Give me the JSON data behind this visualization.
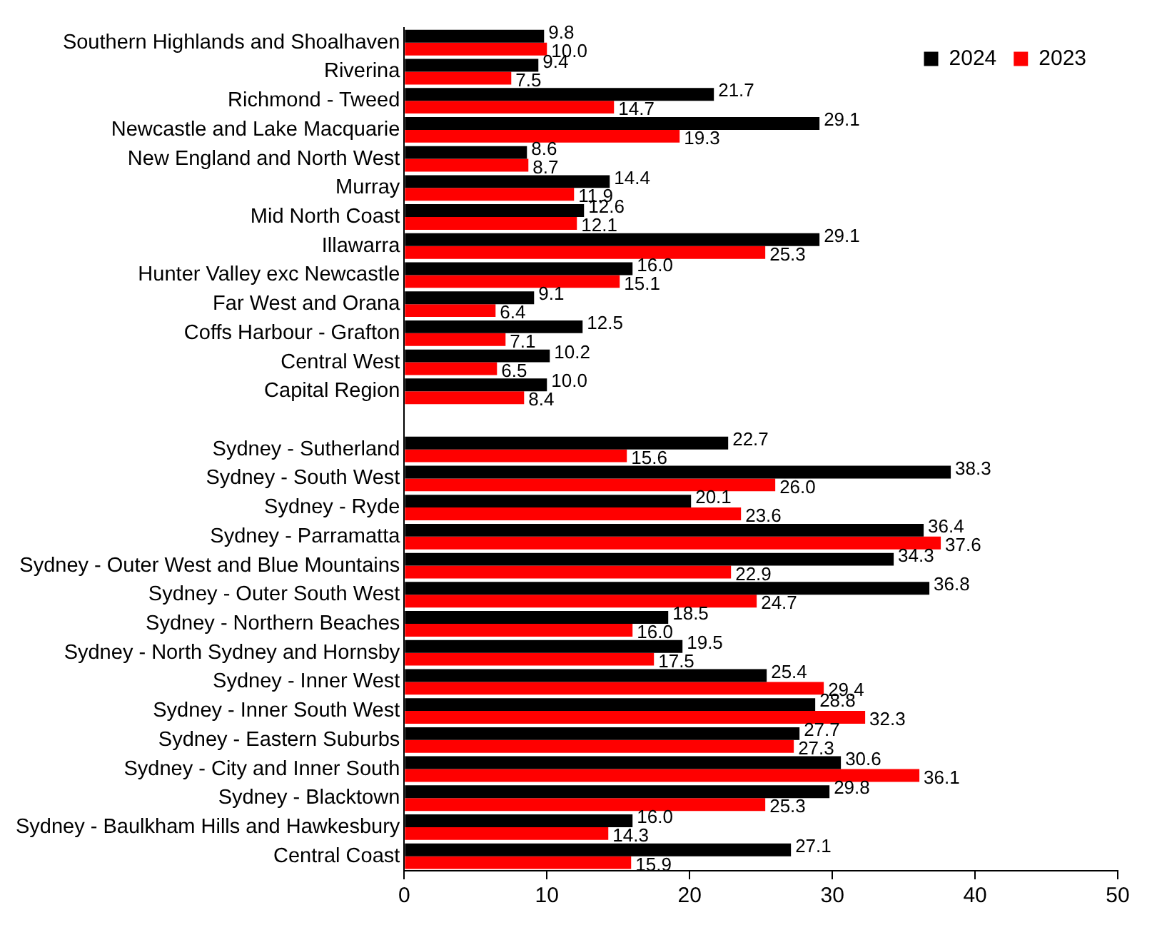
{
  "chart_data": {
    "type": "bar",
    "orientation": "horizontal",
    "legend": "top right",
    "grid": false,
    "categories": [
      "Southern Highlands and Shoalhaven",
      "Riverina",
      "Richmond - Tweed",
      "Newcastle and Lake Macquarie",
      "New England and North West",
      "Murray",
      "Mid North Coast",
      "Illawarra",
      "Hunter Valley exc Newcastle",
      "Far West and Orana",
      "Coffs Harbour - Grafton",
      "Central West",
      "Capital Region",
      null,
      "Sydney - Sutherland",
      "Sydney - South West",
      "Sydney - Ryde",
      "Sydney - Parramatta",
      "Sydney - Outer West and Blue Mountains",
      "Sydney - Outer South West",
      "Sydney - Northern Beaches",
      "Sydney - North Sydney and Hornsby",
      "Sydney - Inner West",
      "Sydney - Inner South West",
      "Sydney - Eastern Suburbs",
      "Sydney - City and Inner South",
      "Sydney - Blacktown",
      "Sydney - Baulkham Hills and Hawkesbury",
      "Central Coast"
    ],
    "series": [
      {
        "name": "2024",
        "color": "#000000",
        "values": [
          9.8,
          9.4,
          21.7,
          29.1,
          8.6,
          14.4,
          12.6,
          29.1,
          16.0,
          9.1,
          12.5,
          10.2,
          10.0,
          null,
          22.7,
          38.3,
          20.1,
          36.4,
          34.3,
          36.8,
          18.5,
          19.5,
          25.4,
          28.8,
          27.7,
          30.6,
          29.8,
          16.0,
          27.1
        ],
        "value_labels": [
          "9.8",
          "9.4",
          "21.7",
          "29.1",
          "8.6",
          "14.4",
          "12.6",
          "29.1",
          "16.0",
          "9.1",
          "12.5",
          "10.2",
          "10.0",
          null,
          "22.7",
          "38.3",
          "20.1",
          "36.4",
          "34.3",
          "36.8",
          "18.5",
          "19.5",
          "25.4",
          "28.8",
          "27.7",
          "30.6",
          "29.8",
          "16.0",
          "27.1"
        ]
      },
      {
        "name": "2023",
        "color": "#ff0000",
        "values": [
          10.0,
          7.5,
          14.7,
          19.3,
          8.7,
          11.9,
          12.1,
          25.3,
          15.1,
          6.4,
          7.1,
          6.5,
          8.4,
          null,
          15.6,
          26.0,
          23.6,
          37.6,
          22.9,
          24.7,
          16.0,
          17.5,
          29.4,
          32.3,
          27.3,
          36.1,
          25.3,
          14.3,
          15.9
        ],
        "value_labels": [
          "10.0",
          "7.5",
          "14.7",
          "19.3",
          "8.7",
          "11.9",
          "12.1",
          "25.3",
          "15.1",
          "6.4",
          "7.1",
          "6.5",
          "8.4",
          null,
          "15.6",
          "26.0",
          "23.6",
          "37.6",
          "22.9",
          "24.7",
          "16.0",
          "17.5",
          "29.4",
          "32.3",
          "27.3",
          "36.1",
          "25.3",
          "14.3",
          "15.9"
        ]
      }
    ],
    "xlim": [
      0,
      50
    ],
    "xticks": [
      0,
      10,
      20,
      30,
      40,
      50
    ]
  }
}
